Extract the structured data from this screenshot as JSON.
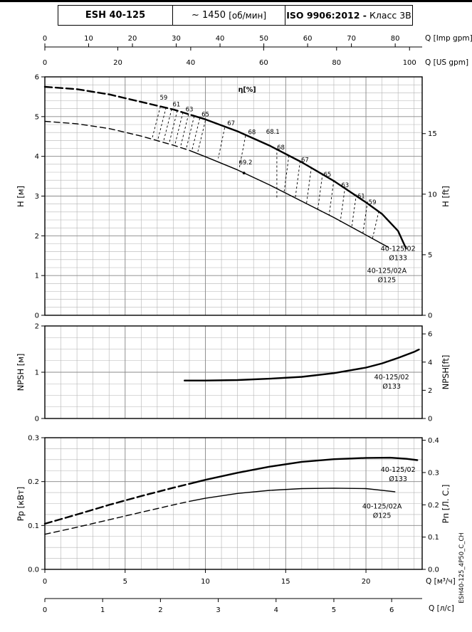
{
  "header": {
    "model": "ESH 40-125",
    "speed_value": "~ 1450",
    "speed_unit": "[об/мин]",
    "iso": "ISO 9906:2012 -",
    "iso_class": "Класс 3В"
  },
  "side_code": "ESH40-125_4P50_C_CH",
  "axis_titles": {
    "h_m": "H [м]",
    "h_ft": "H [ft]",
    "npsh_m": "NPSH [м]",
    "npsh_ft": "NPSH[ft]",
    "p_kw": "Pp [кВт]",
    "p_hp": "Pп [Л. С.]",
    "q_imp": "Q [Imp gpm]",
    "q_us": "Q [US gpm]",
    "q_m3h": "Q [м³/ч]",
    "q_ls": "Q [л/с]"
  },
  "chart_data": [
    {
      "type": "line",
      "name": "head-flow-chart",
      "x_range": [
        0,
        23.5
      ],
      "y_range": [
        0,
        6
      ],
      "x_minor": 1,
      "y_minor": 0.2,
      "x_major": [
        5,
        10,
        15,
        20
      ],
      "y_major": [
        1,
        2,
        3,
        4,
        5
      ],
      "left_axis": {
        "values": [
          0,
          1,
          2,
          3,
          4,
          5,
          6
        ],
        "labels": [
          "0",
          "1",
          "2",
          "3",
          "4",
          "5",
          "6"
        ]
      },
      "right_axis": {
        "factor": 3.2808,
        "values": [
          0,
          5,
          10,
          15
        ],
        "labels": [
          "0",
          "5",
          "10",
          "15"
        ]
      },
      "top_axes": [
        {
          "factor": 3.6662,
          "values": [
            0,
            10,
            20,
            30,
            40,
            50,
            60,
            70,
            80
          ],
          "labels": [
            "0",
            "10",
            "20",
            "30",
            "40",
            "50",
            "60",
            "70",
            "80"
          ]
        },
        {
          "factor": 4.4029,
          "values": [
            0,
            20,
            40,
            60,
            80,
            100
          ],
          "labels": [
            "0",
            "20",
            "40",
            "60",
            "80",
            "100"
          ]
        }
      ],
      "series": [
        {
          "name": "40-125/02 Ø133",
          "style": "thick",
          "dash_until": 9.2,
          "points": [
            [
              0,
              5.75
            ],
            [
              2,
              5.69
            ],
            [
              4,
              5.56
            ],
            [
              6,
              5.37
            ],
            [
              8,
              5.18
            ],
            [
              9.2,
              5.03
            ],
            [
              10,
              4.93
            ],
            [
              12,
              4.63
            ],
            [
              14,
              4.27
            ],
            [
              16,
              3.85
            ],
            [
              18,
              3.38
            ],
            [
              20,
              2.84
            ],
            [
              21,
              2.55
            ],
            [
              22,
              2.12
            ],
            [
              22.5,
              1.68
            ]
          ]
        },
        {
          "name": "40-125/02A Ø125",
          "style": "thin",
          "dash_until": 9.0,
          "points": [
            [
              0,
              4.88
            ],
            [
              2,
              4.82
            ],
            [
              4,
              4.7
            ],
            [
              6,
              4.51
            ],
            [
              8,
              4.28
            ],
            [
              9,
              4.15
            ],
            [
              10,
              3.99
            ],
            [
              12,
              3.66
            ],
            [
              14,
              3.28
            ],
            [
              16,
              2.87
            ],
            [
              18,
              2.46
            ],
            [
              20,
              2.02
            ],
            [
              21.4,
              1.71
            ]
          ]
        }
      ],
      "eta_title": {
        "text": "η[%]",
        "x": 12.6,
        "y": 5.62
      },
      "eff_labels": [
        {
          "t": "59",
          "x": 7.4,
          "y": 5.43
        },
        {
          "t": "61",
          "x": 8.2,
          "y": 5.26
        },
        {
          "t": "63",
          "x": 9.0,
          "y": 5.13
        },
        {
          "t": "65",
          "x": 10.0,
          "y": 5.01
        },
        {
          "t": "67",
          "x": 11.6,
          "y": 4.78
        },
        {
          "t": "68",
          "x": 12.9,
          "y": 4.56
        },
        {
          "t": "68.1",
          "x": 14.2,
          "y": 4.57
        },
        {
          "t": "68",
          "x": 14.7,
          "y": 4.17
        },
        {
          "t": "67",
          "x": 16.2,
          "y": 3.86
        },
        {
          "t": "65",
          "x": 17.6,
          "y": 3.49
        },
        {
          "t": "63",
          "x": 18.7,
          "y": 3.22
        },
        {
          "t": "61",
          "x": 19.7,
          "y": 2.95
        },
        {
          "t": "59",
          "x": 20.4,
          "y": 2.79
        }
      ],
      "bep": {
        "label": "69.2",
        "label_x": 12.5,
        "label_y": 3.8,
        "dot": [
          12.4,
          3.58
        ]
      },
      "hatch": [
        [
          7.2,
          5.26,
          6.7,
          4.48
        ],
        [
          7.55,
          5.23,
          7.05,
          4.44
        ],
        [
          7.9,
          5.19,
          7.4,
          4.39
        ],
        [
          8.25,
          5.15,
          7.75,
          4.34
        ],
        [
          8.6,
          5.11,
          8.1,
          4.29
        ],
        [
          8.95,
          5.06,
          8.45,
          4.24
        ],
        [
          9.3,
          5.01,
          8.8,
          4.18
        ],
        [
          9.65,
          4.96,
          9.15,
          4.13
        ],
        [
          10.0,
          4.9,
          9.5,
          4.07
        ],
        [
          11.2,
          4.72,
          10.8,
          3.95
        ],
        [
          12.5,
          4.52,
          12.1,
          3.68
        ],
        [
          14.45,
          4.2,
          14.45,
          2.95
        ],
        [
          15.2,
          4.02,
          14.9,
          3.1
        ],
        [
          15.9,
          3.88,
          15.6,
          2.96
        ],
        [
          16.6,
          3.73,
          16.3,
          2.82
        ],
        [
          17.3,
          3.57,
          17.0,
          2.67
        ],
        [
          18.0,
          3.4,
          17.7,
          2.51
        ],
        [
          18.7,
          3.23,
          18.4,
          2.35
        ],
        [
          19.4,
          3.04,
          19.1,
          2.19
        ],
        [
          20.1,
          2.86,
          19.8,
          2.04
        ],
        [
          20.8,
          2.62,
          20.4,
          1.92
        ]
      ],
      "annotations": [
        {
          "lines": [
            "40-125/02",
            "Ø133"
          ],
          "x": 22.0,
          "y": 1.62
        },
        {
          "lines": [
            "40-125/02A",
            "Ø125"
          ],
          "x": 21.3,
          "y": 1.07
        }
      ]
    },
    {
      "type": "line",
      "name": "npsh-chart",
      "x_range": [
        0,
        23.5
      ],
      "y_range": [
        0,
        2
      ],
      "x_minor": 1,
      "y_minor": 0.25,
      "x_major": [
        5,
        10,
        15,
        20
      ],
      "y_major": [
        1
      ],
      "left_axis": {
        "values": [
          0,
          1,
          2
        ],
        "labels": [
          "0",
          "1",
          "2"
        ]
      },
      "right_axis": {
        "factor": 3.2808,
        "values": [
          0,
          2,
          4,
          6
        ],
        "labels": [
          "0",
          "2",
          "4",
          "6"
        ]
      },
      "series": [
        {
          "name": "40-125/02 Ø133",
          "style": "thick",
          "points": [
            [
              8.7,
              0.82
            ],
            [
              10,
              0.82
            ],
            [
              12,
              0.83
            ],
            [
              14,
              0.86
            ],
            [
              16,
              0.9
            ],
            [
              18,
              0.98
            ],
            [
              20,
              1.1
            ],
            [
              21,
              1.19
            ],
            [
              22,
              1.31
            ],
            [
              23,
              1.44
            ],
            [
              23.3,
              1.49
            ]
          ]
        }
      ],
      "annotations": [
        {
          "lines": [
            "40-125/02",
            "Ø133"
          ],
          "x": 21.6,
          "y": 0.85
        }
      ]
    },
    {
      "type": "line",
      "name": "power-chart",
      "x_range": [
        0,
        23.5
      ],
      "y_range": [
        0,
        0.3
      ],
      "x_minor": 1,
      "y_minor": 0.025,
      "x_major": [
        5,
        10,
        15,
        20
      ],
      "y_major": [
        0.1,
        0.2
      ],
      "left_axis": {
        "values": [
          0,
          0.1,
          0.2,
          0.3
        ],
        "labels": [
          "0.0",
          "0.1",
          "0.2",
          "0.3"
        ]
      },
      "right_axis": {
        "factor": 1.3596,
        "values": [
          0,
          0.1,
          0.2,
          0.3,
          0.4
        ],
        "labels": [
          "0.0",
          "0.1",
          "0.2",
          "0.3",
          "0.4"
        ]
      },
      "bottom_axes": [
        {
          "factor": 1,
          "values": [
            0,
            5,
            10,
            15,
            20
          ],
          "labels": [
            "0",
            "5",
            "10",
            "15",
            "20"
          ]
        },
        {
          "factor": 0.27778,
          "values": [
            0,
            1,
            2,
            3,
            4,
            5,
            6
          ],
          "labels": [
            "0",
            "1",
            "2",
            "3",
            "4",
            "5",
            "6"
          ]
        }
      ],
      "series": [
        {
          "name": "40-125/02 Ø133",
          "style": "thick",
          "dash_until": 9,
          "points": [
            [
              0,
              0.104
            ],
            [
              2,
              0.125
            ],
            [
              4,
              0.147
            ],
            [
              6,
              0.167
            ],
            [
              8,
              0.186
            ],
            [
              9,
              0.195
            ],
            [
              10,
              0.204
            ],
            [
              12,
              0.22
            ],
            [
              14,
              0.234
            ],
            [
              16,
              0.245
            ],
            [
              18,
              0.251
            ],
            [
              20,
              0.254
            ],
            [
              21.5,
              0.2545
            ],
            [
              22.5,
              0.252
            ],
            [
              23.2,
              0.249
            ]
          ]
        },
        {
          "name": "40-125/02A Ø125",
          "style": "thin",
          "dash_until": 9,
          "points": [
            [
              0,
              0.08
            ],
            [
              2,
              0.096
            ],
            [
              4,
              0.113
            ],
            [
              6,
              0.13
            ],
            [
              8,
              0.147
            ],
            [
              9,
              0.155
            ],
            [
              10,
              0.162
            ],
            [
              12,
              0.173
            ],
            [
              14,
              0.18
            ],
            [
              16,
              0.184
            ],
            [
              18,
              0.185
            ],
            [
              20,
              0.184
            ],
            [
              21.8,
              0.177
            ]
          ]
        }
      ],
      "annotations": [
        {
          "lines": [
            "40-125/02",
            "Ø133"
          ],
          "x": 22.0,
          "y": 0.222
        },
        {
          "lines": [
            "40-125/02A",
            "Ø125"
          ],
          "x": 21.0,
          "y": 0.139
        }
      ]
    }
  ]
}
